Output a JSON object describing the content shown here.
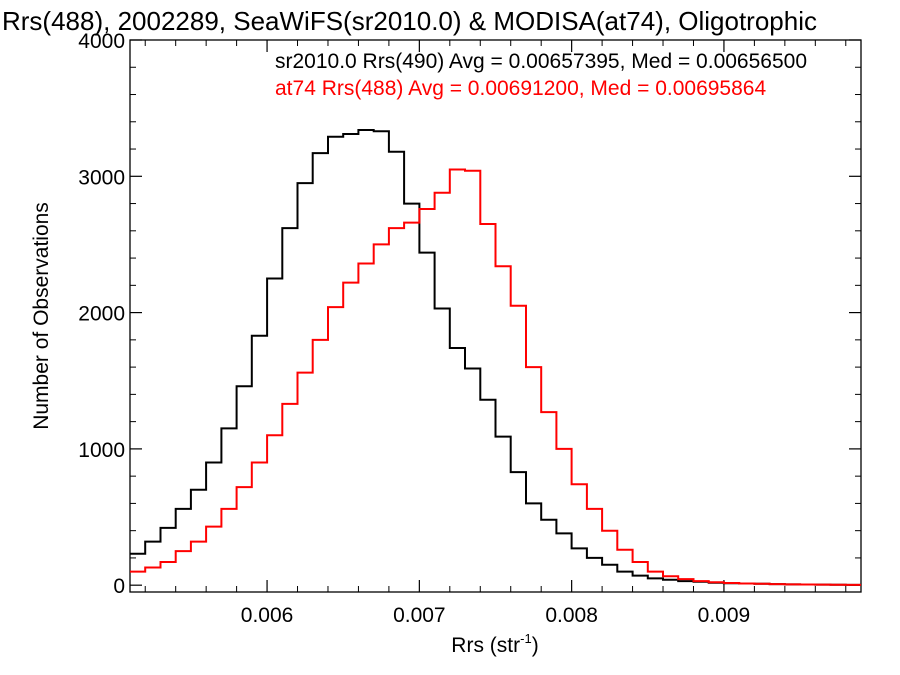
{
  "chart_data": {
    "type": "line",
    "step": true,
    "title": "Rrs(488), 2002289, SeaWiFS(sr2010.0) & MODISA(at74), Oligotrophic",
    "xlabel": "Rrs (str",
    "xlabel_sup": "-1",
    "xlabel_end": ")",
    "ylabel": "Number of Observations",
    "xlim": [
      0.0051,
      0.0099
    ],
    "ylim": [
      -50,
      4000
    ],
    "x_ticks": [
      0.006,
      0.007,
      0.008,
      0.009
    ],
    "x_tick_labels": [
      "0.006",
      "0.007",
      "0.008",
      "0.009"
    ],
    "y_ticks": [
      0,
      1000,
      2000,
      3000,
      4000
    ],
    "y_tick_labels": [
      "0",
      "1000",
      "2000",
      "3000",
      "4000"
    ],
    "grid": false,
    "annotations": [
      {
        "text": "sr2010.0 Rrs(490) Avg = 0.00657395, Med = 0.00656500",
        "color": "#000000"
      },
      {
        "text": "at74 Rrs(488) Avg = 0.00691200, Med = 0.00695864",
        "color": "#ff0000"
      }
    ],
    "series": [
      {
        "color": "#000000",
        "x": [
          0.0051,
          0.0052,
          0.0053,
          0.0054,
          0.0055,
          0.0056,
          0.0057,
          0.0058,
          0.0059,
          0.006,
          0.0061,
          0.0062,
          0.0063,
          0.0064,
          0.0065,
          0.0066,
          0.0067,
          0.0068,
          0.0069,
          0.007,
          0.0071,
          0.0072,
          0.0073,
          0.0074,
          0.0075,
          0.0076,
          0.0077,
          0.0078,
          0.0079,
          0.008,
          0.0081,
          0.0082,
          0.0083,
          0.0084,
          0.0085,
          0.0086,
          0.0087,
          0.0088,
          0.0089,
          0.009,
          0.0091,
          0.0092,
          0.0093,
          0.0094,
          0.0095,
          0.0096,
          0.0097,
          0.0098,
          0.0099
        ],
        "values": [
          230,
          320,
          420,
          560,
          700,
          900,
          1150,
          1460,
          1830,
          2250,
          2620,
          2950,
          3170,
          3290,
          3310,
          3340,
          3330,
          3180,
          2800,
          2440,
          2030,
          1740,
          1590,
          1360,
          1090,
          830,
          600,
          480,
          380,
          270,
          200,
          150,
          100,
          70,
          50,
          40,
          30,
          25,
          18,
          14,
          12,
          10,
          8,
          6,
          5,
          4,
          3,
          2,
          2
        ]
      },
      {
        "color": "#ff0000",
        "x": [
          0.0051,
          0.0052,
          0.0053,
          0.0054,
          0.0055,
          0.0056,
          0.0057,
          0.0058,
          0.0059,
          0.006,
          0.0061,
          0.0062,
          0.0063,
          0.0064,
          0.0065,
          0.0066,
          0.0067,
          0.0068,
          0.0069,
          0.007,
          0.0071,
          0.0072,
          0.0073,
          0.0074,
          0.0075,
          0.0076,
          0.0077,
          0.0078,
          0.0079,
          0.008,
          0.0081,
          0.0082,
          0.0083,
          0.0084,
          0.0085,
          0.0086,
          0.0087,
          0.0088,
          0.0089,
          0.009,
          0.0091,
          0.0092,
          0.0093,
          0.0094,
          0.0095,
          0.0096,
          0.0097,
          0.0098,
          0.0099
        ],
        "values": [
          100,
          130,
          170,
          250,
          320,
          430,
          560,
          720,
          900,
          1100,
          1330,
          1560,
          1800,
          2040,
          2220,
          2360,
          2500,
          2620,
          2660,
          2760,
          2880,
          3050,
          3040,
          2650,
          2340,
          2050,
          1600,
          1270,
          1000,
          740,
          560,
          400,
          260,
          170,
          100,
          65,
          45,
          30,
          22,
          16,
          12,
          10,
          8,
          6,
          5,
          4,
          3,
          2,
          2
        ]
      }
    ]
  }
}
